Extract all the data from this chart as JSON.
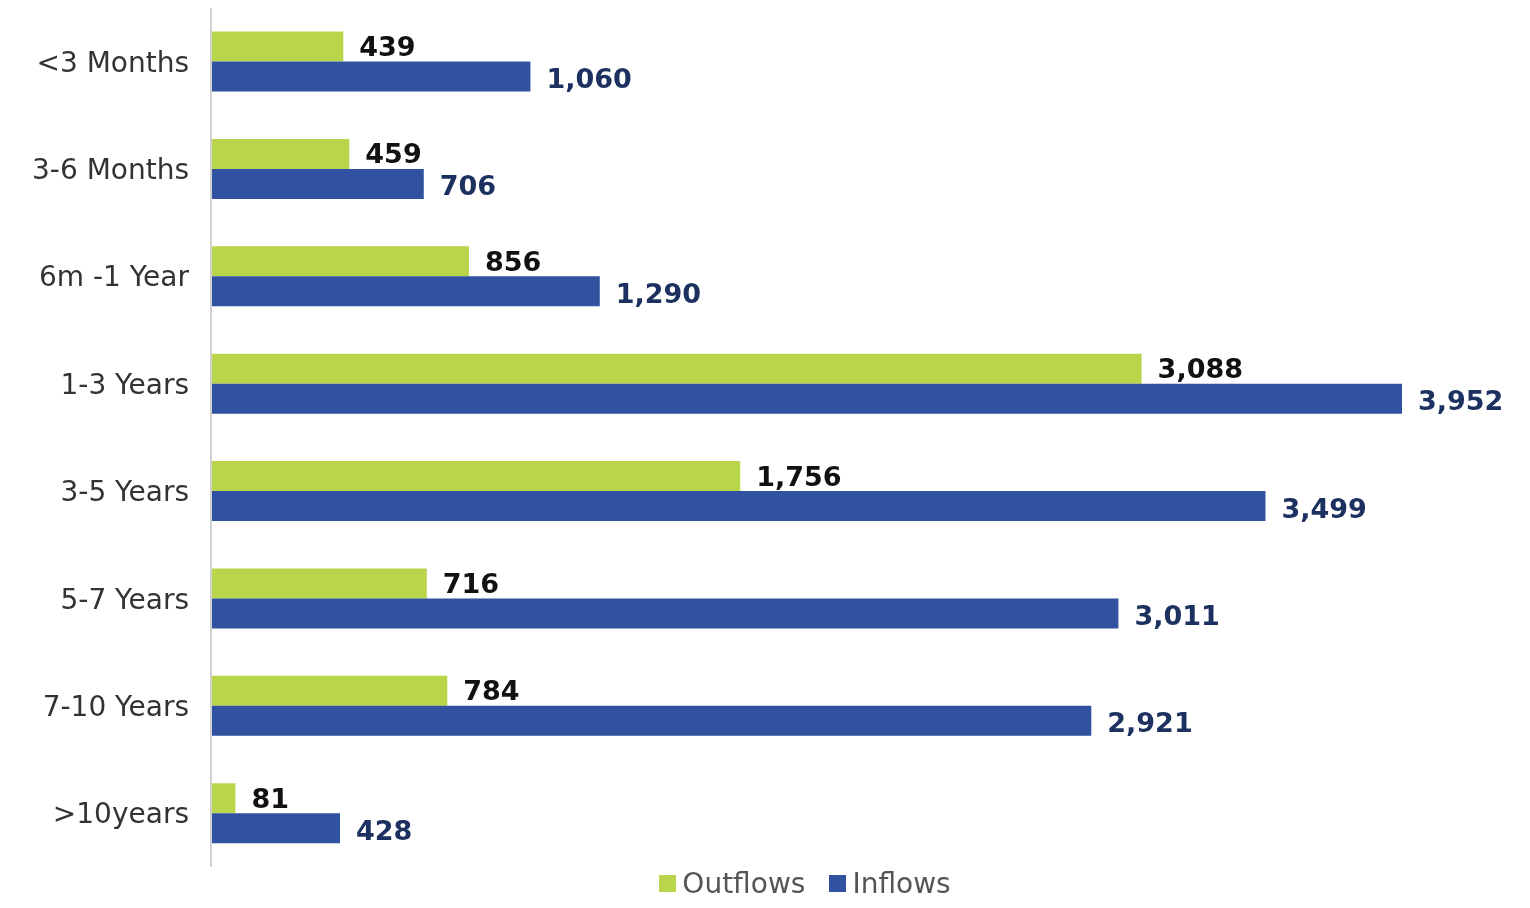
{
  "chart_data": {
    "type": "bar",
    "orientation": "horizontal",
    "tick_labels": "y",
    "categories": [
      "<3 Months",
      "3-6 Months",
      "6m -1 Year",
      "1-3 Years",
      "3-5 Years",
      "5-7 Years",
      "7-10 Years",
      ">10years"
    ],
    "series": [
      {
        "name": "Outflows",
        "color": "#b9d54a",
        "values": [
          439,
          459,
          856,
          3088,
          1756,
          716,
          784,
          81
        ],
        "value_labels": [
          "439",
          "459",
          "856",
          "3,088",
          "1,756",
          "716",
          "784",
          "81"
        ]
      },
      {
        "name": "Inflows",
        "color": "#3152a0",
        "values": [
          1060,
          706,
          1290,
          3952,
          3499,
          3011,
          2921,
          428
        ],
        "value_labels": [
          "1,060",
          "706",
          "1,290",
          "3,952",
          "3,499",
          "3,011",
          "2,921",
          "428"
        ]
      }
    ],
    "legend": "bottom",
    "grid": false
  }
}
